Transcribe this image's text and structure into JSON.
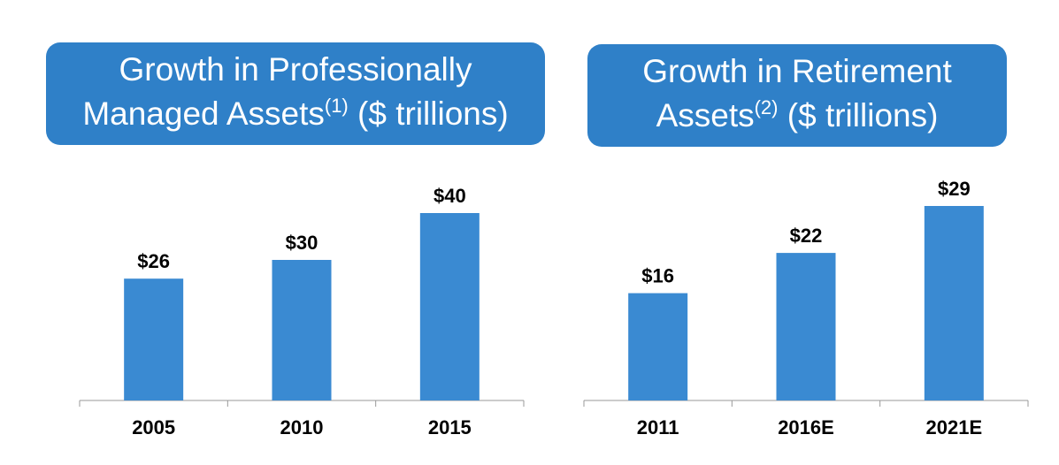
{
  "chart_data": [
    {
      "type": "bar",
      "title_main": "Growth in Professionally Managed Assets",
      "title_sup": "(1)",
      "title_unit": " ($ trillions)",
      "categories": [
        "2005",
        "2010",
        "2015"
      ],
      "values": [
        26,
        30,
        40
      ],
      "data_labels": [
        "$26",
        "$30",
        "$40"
      ],
      "ylim": [
        0,
        40
      ],
      "grid": false,
      "color": "#3a8ad2"
    },
    {
      "type": "bar",
      "title_main": "Growth in Retirement Assets",
      "title_sup": "(2)",
      "title_unit": " ($ trillions)",
      "categories": [
        "2011",
        "2016E",
        "2021E"
      ],
      "values": [
        16,
        22,
        29
      ],
      "data_labels": [
        "$16",
        "$22",
        "$29"
      ],
      "ylim": [
        0,
        29
      ],
      "grid": false,
      "color": "#3a8ad2"
    }
  ]
}
